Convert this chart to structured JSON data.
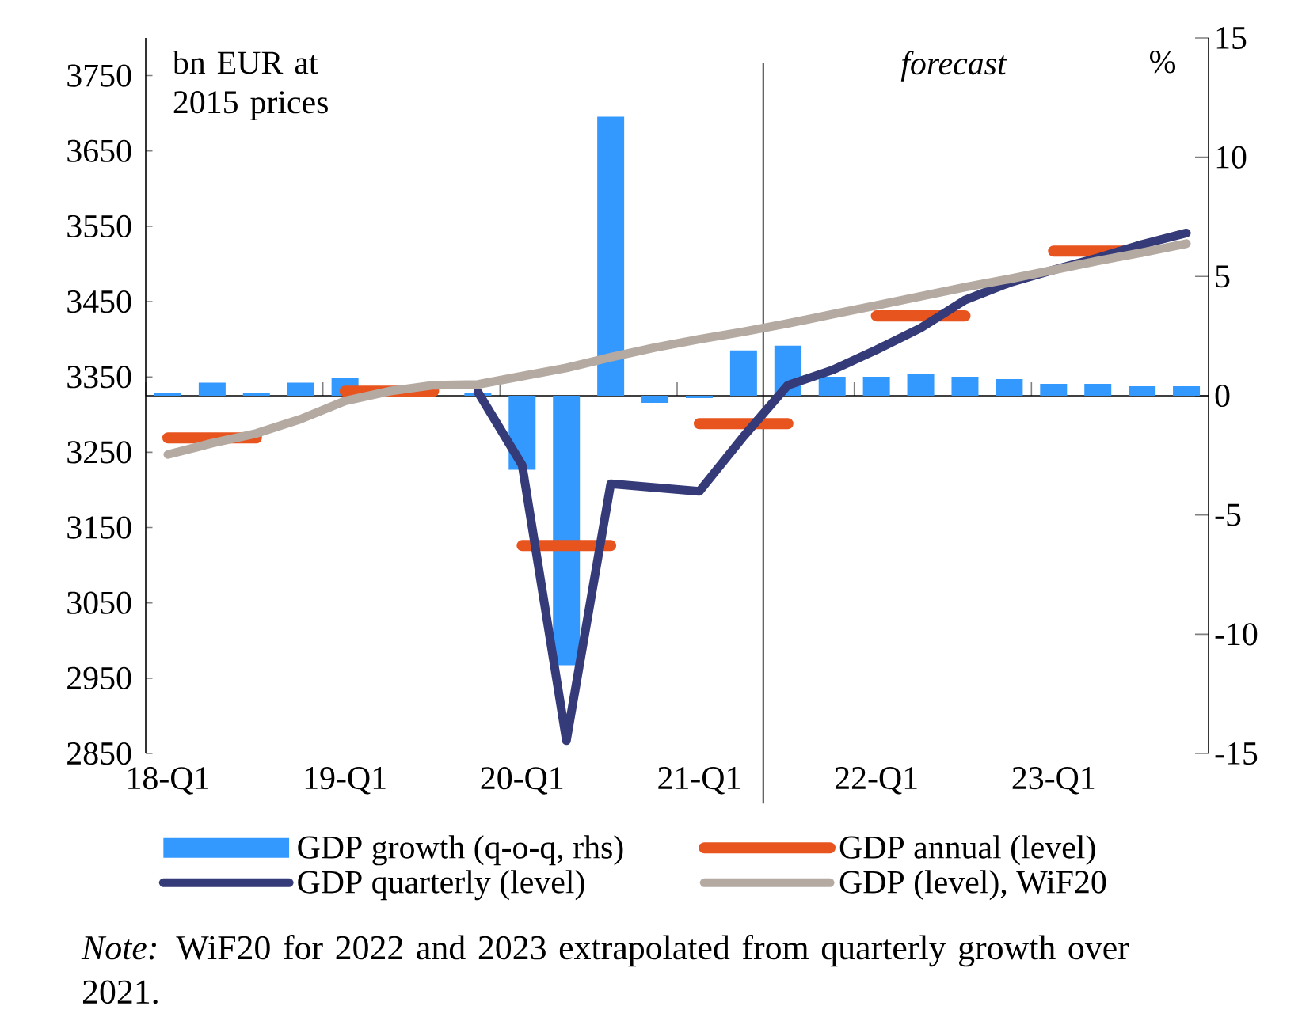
{
  "chart_data": {
    "type": "bar",
    "ylabel": "bn EUR at 2015 prices",
    "y2label": "%",
    "categories": [
      "18-Q1",
      null,
      null,
      null,
      "19-Q1",
      null,
      null,
      null,
      "20-Q1",
      null,
      null,
      null,
      "21-Q1",
      null,
      null,
      null,
      "22-Q1",
      null,
      null,
      null,
      "23-Q1",
      null,
      null,
      null
    ],
    "series": [
      {
        "name": "GDP growth (q-o-q, rhs)",
        "axis": "y2",
        "color": "#3399ff",
        "values": [
          0.1,
          0.55,
          0.13,
          0.55,
          0.73,
          null,
          null,
          0.1,
          -3.1,
          -11.3,
          11.7,
          -0.3,
          -0.1,
          1.9,
          2.1,
          0.8,
          0.8,
          0.9,
          0.8,
          0.7,
          0.5,
          0.5,
          0.4,
          0.4
        ]
      },
      {
        "name": "GDP annual (level)",
        "type": "line",
        "color": "#e8541e",
        "values": [
          3269,
          3269,
          3269,
          null,
          3331,
          3331,
          3331,
          null,
          3126,
          3126,
          3126,
          null,
          3288,
          3288,
          3288,
          null,
          3431,
          3431,
          3431,
          null,
          3517,
          3517,
          3517,
          null
        ]
      },
      {
        "name": "GDP quarterly (level)",
        "type": "line",
        "color": "#353b78",
        "values": [
          null,
          null,
          null,
          null,
          null,
          null,
          null,
          3330,
          3233,
          2867,
          3208,
          3203,
          3198,
          3271,
          3339,
          3359,
          3386,
          3415,
          3452,
          3475,
          3492,
          3508,
          3526,
          3541
        ]
      },
      {
        "name": "GDP (level), WiF20",
        "type": "line",
        "color": "#b5aaa2",
        "values": [
          3247,
          3262,
          3275,
          3294,
          3318,
          3331,
          3339,
          3340,
          3351,
          3362,
          3376,
          3389,
          3400,
          3410,
          3421,
          3433,
          3445,
          3457,
          3469,
          3480,
          3492,
          3504,
          3515,
          3527
        ]
      }
    ],
    "ylim": [
      2850,
      3800
    ],
    "yticks": [
      2850,
      2950,
      3050,
      3150,
      3250,
      3350,
      3450,
      3550,
      3650,
      3750
    ],
    "y2lim": [
      -15,
      15
    ],
    "y2ticks": [
      -15,
      -10,
      -5,
      0,
      5,
      10,
      15
    ],
    "legend": "bottom",
    "annotations": [
      "forecast",
      "*Note:* WiF20 for 2022 and 2023 extrapolated from quarterly growth over 2021."
    ]
  }
}
